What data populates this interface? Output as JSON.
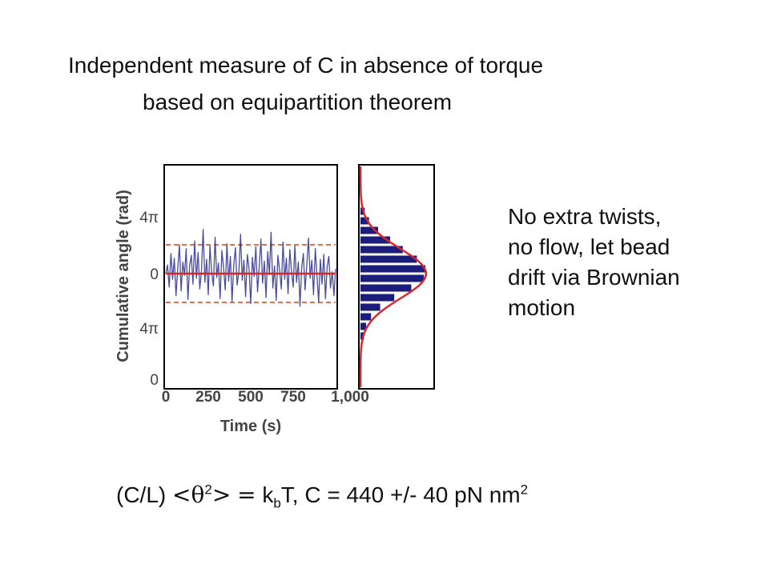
{
  "title": {
    "line1": "Independent measure of C in absence of torque",
    "line2": "based on equipartition theorem"
  },
  "description": {
    "lines": [
      "No extra twists,",
      "no flow, let bead",
      "drift via Brownian",
      "motion"
    ]
  },
  "formula": {
    "prefix": "(C/L)",
    "lt": "<",
    "theta": "θ",
    "exp": "2",
    "gt": ">",
    "eq": "=",
    "k": "k",
    "b": "b",
    "rest": "T, C = 440 +/- 40 pN nm",
    "exp2": "2"
  },
  "chart_data": {
    "type": "line",
    "xlabel": "Time (s)",
    "ylabel": "Cumulative angle (rad)",
    "x_ticks": [
      "0",
      "250",
      "500",
      "750",
      "1,000"
    ],
    "y_ticks": [
      "4π",
      "0",
      "4π",
      "0"
    ],
    "xlim": [
      0,
      1000
    ],
    "colors": {
      "trace": "#2b2b8c",
      "mean_line": "#d62828",
      "sigma_lines": "#e07050",
      "histogram": "#1c1c7a",
      "gaussian": "#d62828"
    },
    "series": [
      {
        "name": "",
        "x": [
          0,
          10,
          20,
          30,
          40,
          50,
          60,
          70,
          80,
          90,
          100,
          110,
          120,
          130,
          140,
          150,
          160,
          170,
          180,
          190,
          200,
          210,
          220,
          230,
          240,
          250,
          260,
          270,
          280,
          290,
          300,
          310,
          320,
          330,
          340,
          350,
          360,
          370,
          380,
          390,
          400,
          410,
          420,
          430,
          440,
          450,
          460,
          470,
          480,
          490,
          500,
          510,
          520,
          530,
          540,
          550,
          560,
          570,
          580,
          590,
          600,
          610,
          620,
          630,
          640,
          650,
          660,
          670,
          680,
          690,
          700,
          710,
          720,
          730,
          740,
          750,
          760,
          770,
          780,
          790,
          800,
          810,
          820,
          830,
          840,
          850,
          860,
          870,
          880,
          890,
          900,
          910,
          920,
          930,
          940,
          950,
          960,
          970,
          980,
          990,
          1000
        ],
        "y": [
          0.0,
          0.9,
          -1.4,
          2.1,
          -0.6,
          1.6,
          -2.3,
          0.4,
          3.0,
          -1.8,
          1.2,
          -0.2,
          2.6,
          -2.7,
          0.8,
          1.9,
          -1.1,
          3.4,
          -0.5,
          2.2,
          -1.6,
          0.3,
          4.6,
          -0.9,
          1.5,
          -2.2,
          2.9,
          0.1,
          -1.3,
          3.8,
          -0.4,
          1.1,
          -2.6,
          2.4,
          0.6,
          -1.7,
          3.1,
          -0.8,
          1.8,
          -2.9,
          0.9,
          2.7,
          -1.2,
          0.2,
          4.1,
          -0.7,
          1.4,
          -2.4,
          2.0,
          0.5,
          -3.1,
          1.7,
          -0.3,
          2.8,
          -1.9,
          0.7,
          3.6,
          -1.0,
          1.3,
          -2.5,
          2.3,
          -0.1,
          4.3,
          -1.5,
          0.8,
          -2.8,
          1.9,
          0.4,
          -1.6,
          3.3,
          -0.6,
          1.6,
          -2.1,
          2.5,
          0.3,
          -1.4,
          2.9,
          -0.9,
          1.2,
          -3.4,
          0.6,
          2.1,
          -1.7,
          0.9,
          3.7,
          -0.5,
          1.4,
          -2.2,
          2.6,
          -0.2,
          -3.0,
          1.5,
          -1.1,
          2.0,
          -2.6,
          0.7,
          1.8,
          -1.5,
          0.2,
          -2.3,
          0.5
        ]
      }
    ],
    "histogram": {
      "bins": [
        -6.5,
        -5.5,
        -4.5,
        -3.5,
        -2.5,
        -1.5,
        -0.5,
        0.5,
        1.5,
        2.5,
        3.5,
        4.5,
        5.5,
        6.5
      ],
      "counts": [
        0.05,
        0.08,
        0.15,
        0.28,
        0.48,
        0.72,
        0.9,
        0.92,
        0.8,
        0.6,
        0.42,
        0.25,
        0.12,
        0.06
      ]
    }
  }
}
